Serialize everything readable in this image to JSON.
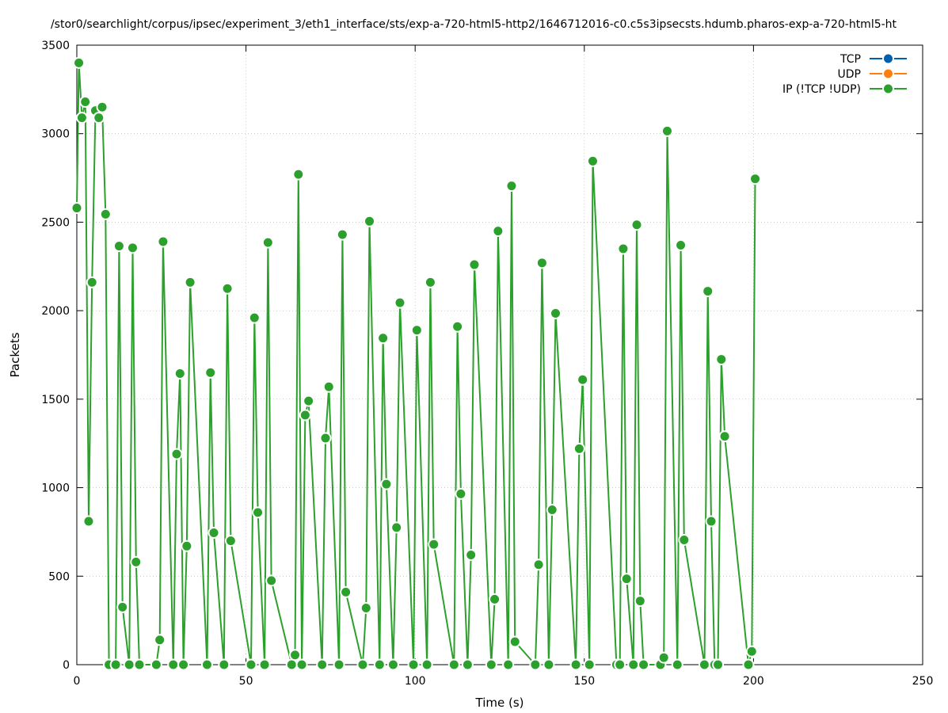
{
  "chart_data": {
    "type": "line",
    "title": "/stor0/searchlight/corpus/ipsec/experiment_3/eth1_interface/sts/exp-a-720-html5-http2/1646712016-c0.c5s3ipsecsts.hdumb.pharos-exp-a-720-html5-ht",
    "xlabel": "Time (s)",
    "ylabel": "Packets",
    "xlim": [
      0,
      250
    ],
    "ylim": [
      0,
      3500
    ],
    "xticks": [
      0,
      50,
      100,
      150,
      200,
      250
    ],
    "yticks": [
      0,
      500,
      1000,
      1500,
      2000,
      2500,
      3000,
      3500
    ],
    "grid": true,
    "legend_position": "top-right",
    "series": [
      {
        "name": "TCP",
        "color": "#0060ad",
        "x": [],
        "y": []
      },
      {
        "name": "UDP",
        "color": "#ff7f0e",
        "x": [],
        "y": []
      },
      {
        "name": "IP (!TCP  !UDP)",
        "color": "#2ca02c",
        "x": [
          0,
          0.6,
          1.5,
          2.5,
          3.5,
          4.5,
          5.5,
          6.5,
          7.5,
          8.5,
          9.5,
          11.5,
          12.5,
          13.5,
          15.5,
          16.5,
          17.5,
          18.5,
          23.5,
          24.5,
          25.5,
          28.5,
          29.5,
          30.5,
          31.5,
          32.5,
          33.5,
          38.5,
          39.5,
          40.5,
          43.5,
          44.5,
          45.5,
          51.5,
          52.5,
          53.5,
          55.5,
          56.5,
          57.5,
          63.5,
          64.5,
          65.5,
          66.5,
          67.5,
          68.5,
          72.5,
          73.5,
          74.5,
          77.5,
          78.5,
          79.5,
          84.5,
          85.5,
          86.5,
          89.5,
          90.5,
          91.5,
          93.5,
          94.5,
          95.5,
          99.5,
          100.5,
          103.5,
          104.5,
          105.5,
          111.5,
          112.5,
          113.5,
          115.5,
          116.5,
          117.5,
          122.5,
          123.5,
          124.5,
          127.5,
          128.5,
          129.5,
          135.5,
          136.5,
          137.5,
          139.5,
          140.5,
          141.5,
          147.5,
          148.5,
          149.5,
          151.5,
          152.5,
          159.5,
          160.5,
          161.5,
          162.5,
          164.5,
          165.5,
          166.5,
          167.5,
          172.5,
          173.5,
          174.5,
          177.5,
          178.5,
          179.5,
          185.5,
          186.5,
          187.5,
          188.5,
          189.5,
          190.5,
          191.5,
          198.5,
          199.5,
          200.5
        ],
        "y": [
          2580,
          3400,
          3090,
          3180,
          810,
          2160,
          3130,
          3090,
          3150,
          2545,
          0,
          0,
          2365,
          325,
          0,
          2355,
          580,
          0,
          0,
          140,
          2390,
          0,
          1190,
          1645,
          0,
          670,
          2160,
          0,
          1650,
          745,
          0,
          2125,
          700,
          0,
          1960,
          860,
          0,
          2385,
          475,
          0,
          55,
          2770,
          0,
          1410,
          1490,
          0,
          1280,
          1570,
          0,
          2430,
          410,
          0,
          320,
          2505,
          0,
          1845,
          1020,
          0,
          775,
          2045,
          0,
          1890,
          0,
          2160,
          680,
          0,
          1910,
          965,
          0,
          620,
          2260,
          0,
          370,
          2450,
          0,
          2705,
          130,
          0,
          565,
          2270,
          0,
          875,
          1985,
          0,
          1220,
          1610,
          0,
          2845,
          0,
          0,
          2350,
          485,
          0,
          2485,
          360,
          0,
          0,
          40,
          3015,
          0,
          2370,
          705,
          0,
          2110,
          810,
          0,
          0,
          1725,
          1290,
          0,
          75,
          2745
        ]
      }
    ]
  }
}
